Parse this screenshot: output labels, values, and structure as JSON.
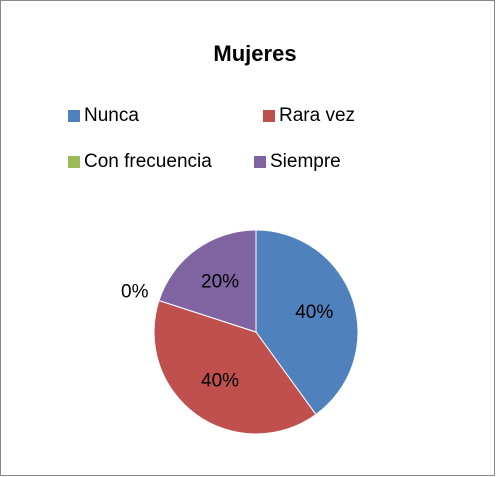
{
  "chart_data": {
    "type": "pie",
    "title": "Mujeres",
    "categories": [
      "Nunca",
      "Rara vez",
      "Con frecuencia",
      "Siempre"
    ],
    "values": [
      40,
      40,
      0,
      20
    ],
    "value_labels": [
      "40%",
      "40%",
      "0%",
      "20%"
    ],
    "colors": [
      "#4f81bd",
      "#c0504d",
      "#9bbb59",
      "#8064a2"
    ],
    "legend": "top"
  }
}
